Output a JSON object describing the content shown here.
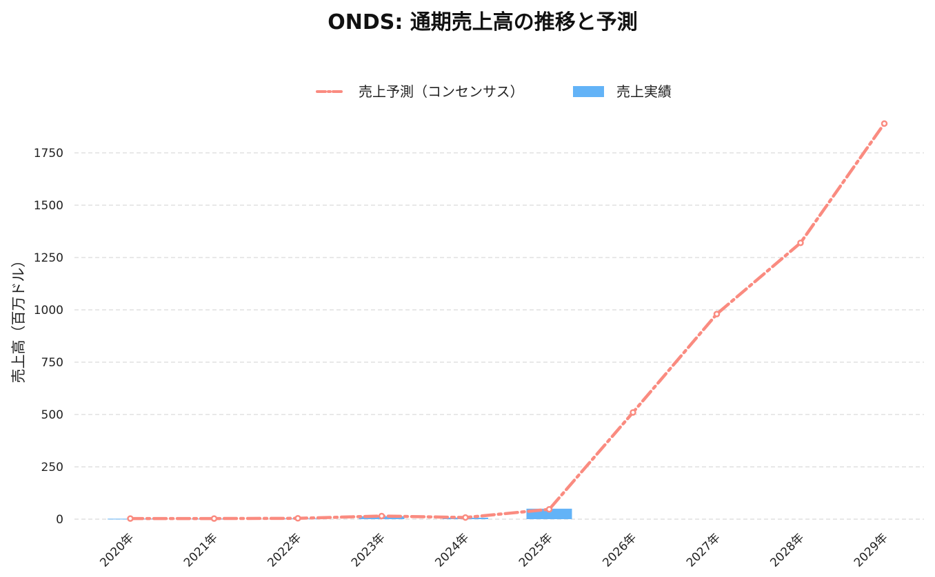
{
  "chart_data": {
    "type": "bar",
    "title": "ONDS: 通期売上高の推移と予測",
    "xlabel": "",
    "ylabel": "売上高（百万ドル）",
    "categories": [
      "2020年",
      "2021年",
      "2022年",
      "2023年",
      "2024年",
      "2025年",
      "2026年",
      "2027年",
      "2028年",
      "2029年"
    ],
    "ylim": [
      0,
      1900
    ],
    "yticks": [
      0,
      250,
      500,
      750,
      1000,
      1250,
      1500,
      1750
    ],
    "grid": true,
    "legend_position": "top-center",
    "series": [
      {
        "name": "売上予測（コンセンサス）",
        "type": "line",
        "style": "dash-dot",
        "color": "#fa8b80",
        "values": [
          3,
          3,
          4,
          15,
          8,
          47,
          510,
          980,
          1320,
          1890
        ]
      },
      {
        "name": "売上実績",
        "type": "bar",
        "color": "#63b3f7",
        "values": [
          2,
          2,
          3,
          14,
          7,
          50,
          null,
          null,
          null,
          null
        ]
      }
    ]
  }
}
